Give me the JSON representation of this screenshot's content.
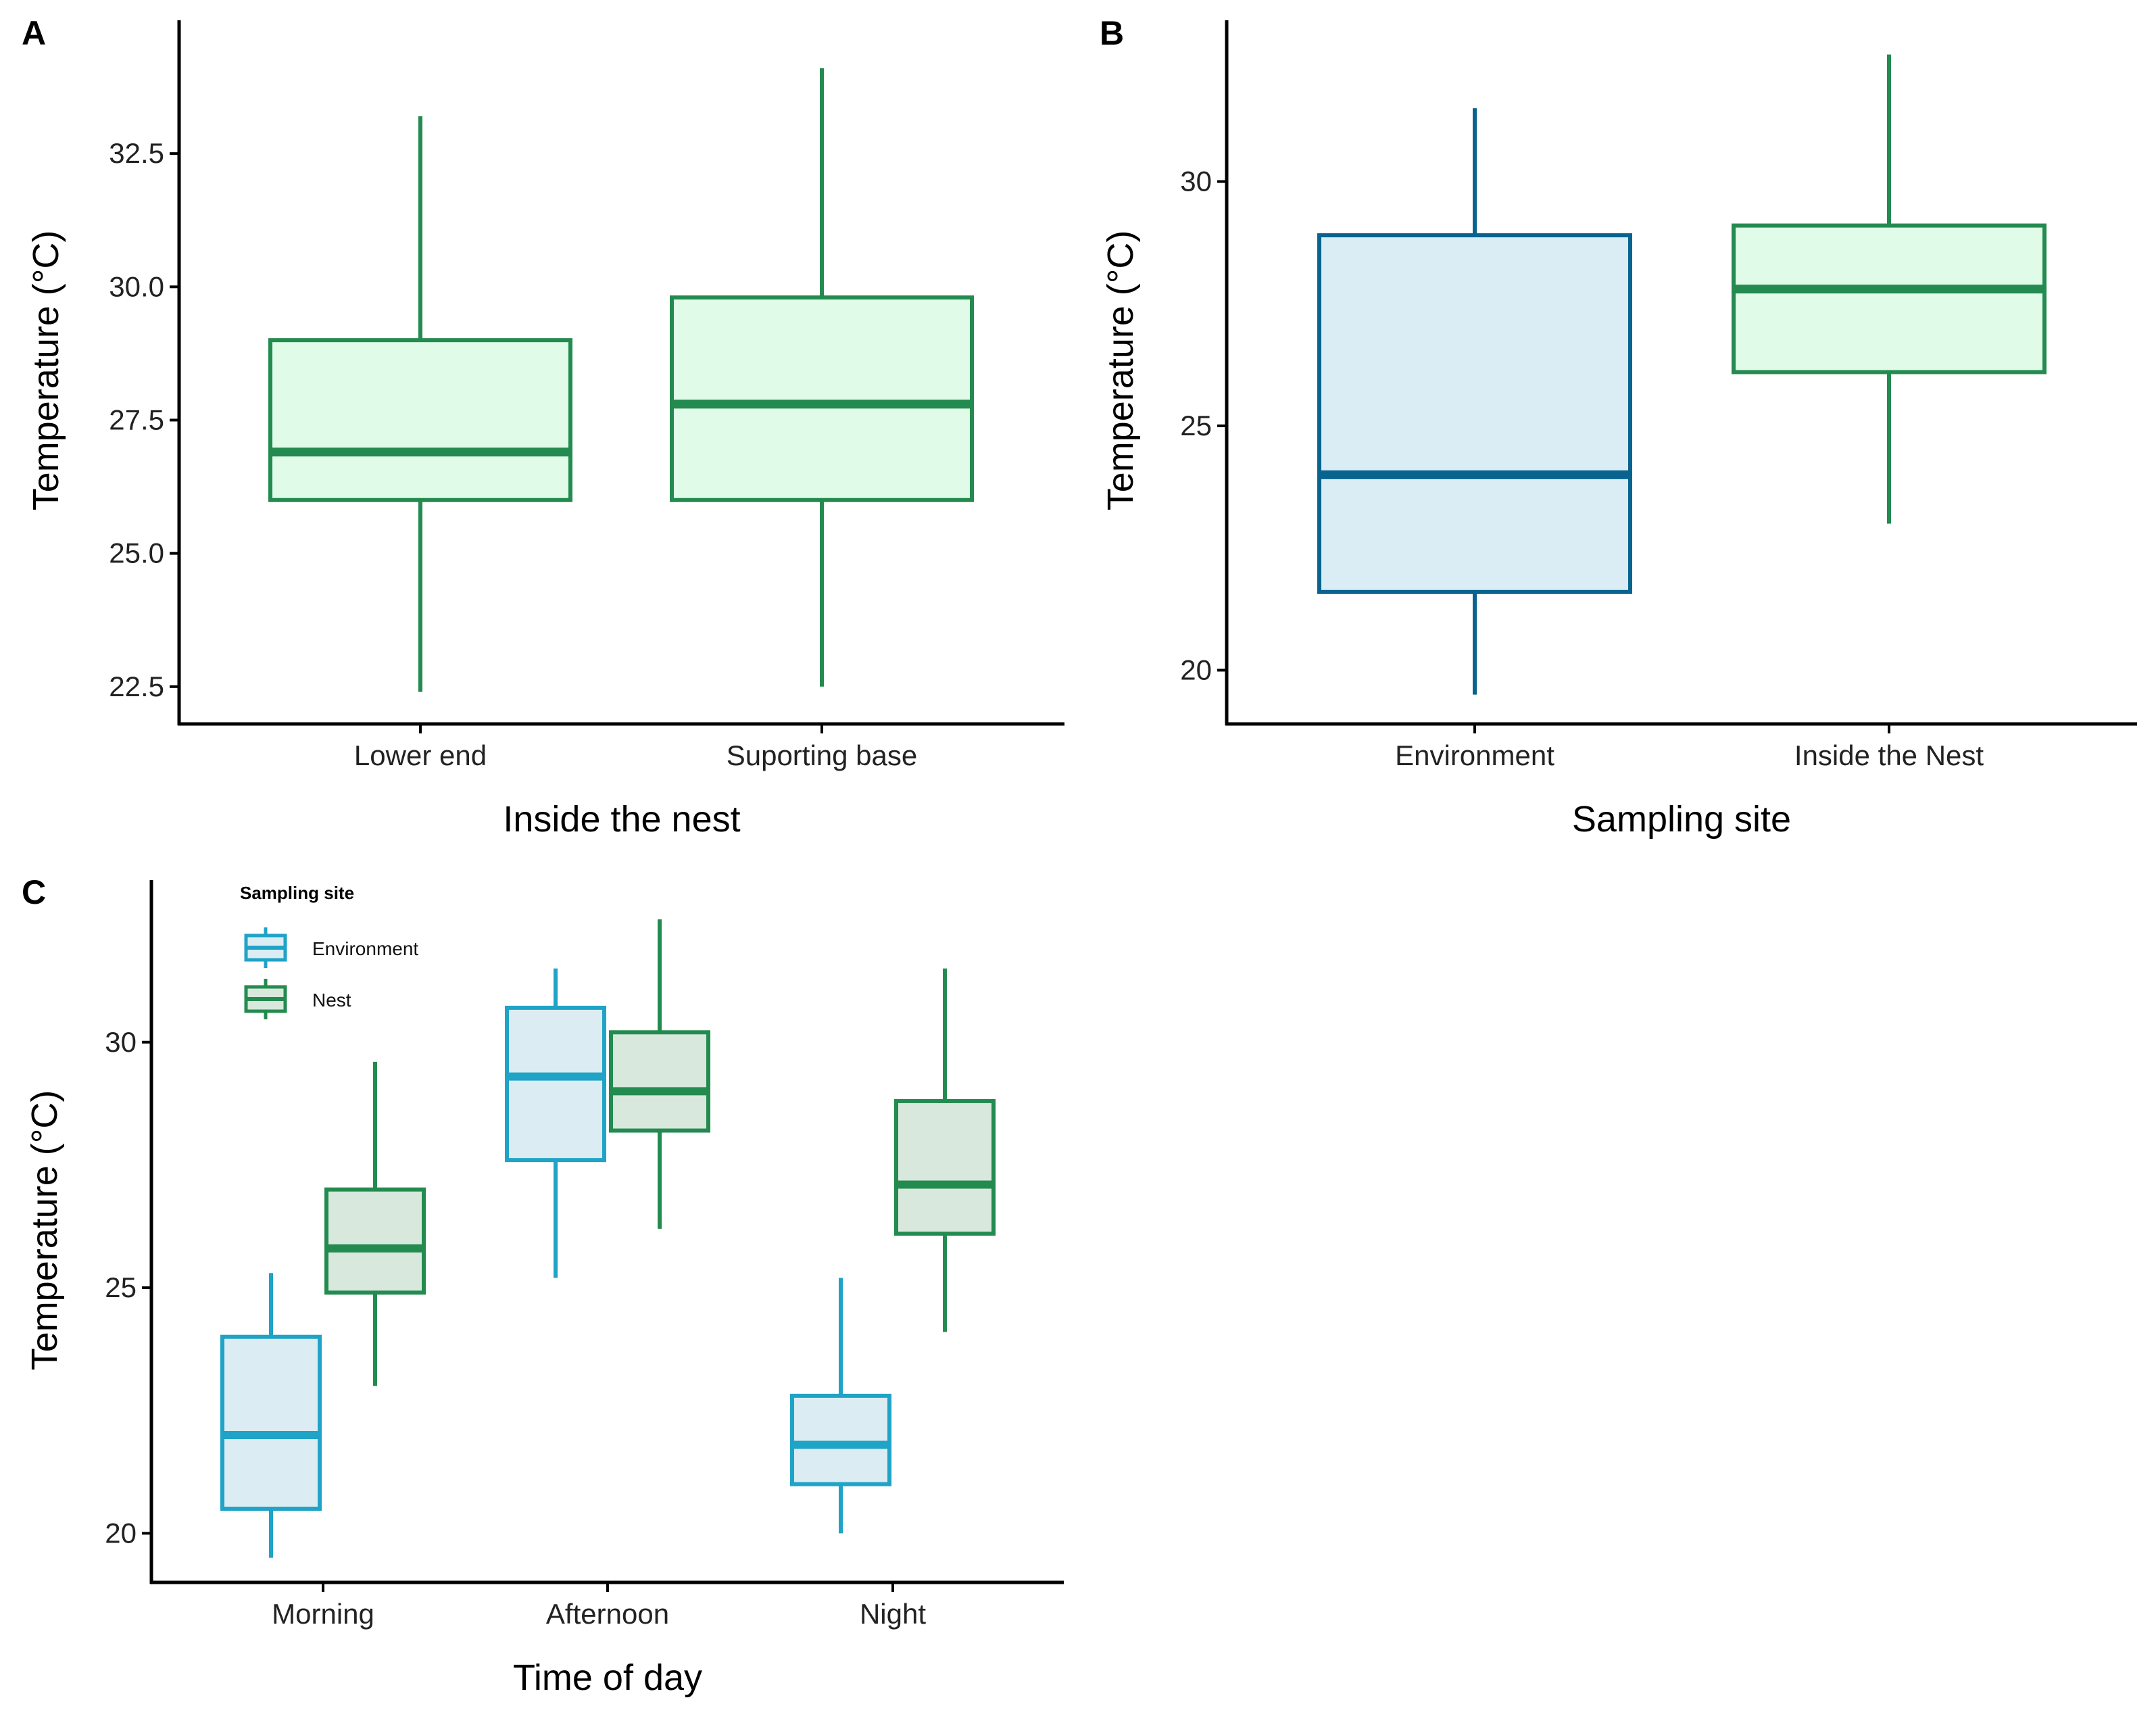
{
  "chart_data": [
    {
      "panel": "A",
      "type": "box",
      "title": "",
      "xlabel": "Inside the nest",
      "ylabel": "Temperature (°C)",
      "categories": [
        "Lower end",
        "Suporting base"
      ],
      "ylim": [
        21.8,
        35.0
      ],
      "yticks": [
        22.5,
        25.0,
        27.5,
        30.0,
        32.5
      ],
      "ytick_labels": [
        "22.5",
        "25.0",
        "27.5",
        "30.0",
        "32.5"
      ],
      "boxes": [
        {
          "category": "Lower end",
          "min": 22.4,
          "q1": 26.0,
          "median": 26.9,
          "q3": 29.0,
          "max": 33.2
        },
        {
          "category": "Suporting base",
          "min": 22.5,
          "q1": 26.0,
          "median": 27.8,
          "q3": 29.8,
          "max": 34.1
        }
      ],
      "colors": {
        "stroke": "#238b4f",
        "fill": "#e0fbe8"
      }
    },
    {
      "panel": "B",
      "type": "box",
      "title": "",
      "xlabel": "Sampling site",
      "ylabel": "Temperature (°C)",
      "categories": [
        "Environment",
        "Inside the Nest"
      ],
      "ylim": [
        18.9,
        33.3
      ],
      "yticks": [
        20,
        25,
        30
      ],
      "ytick_labels": [
        "20",
        "25",
        "30"
      ],
      "boxes": [
        {
          "category": "Environment",
          "min": 19.5,
          "q1": 21.6,
          "median": 24.0,
          "q3": 28.9,
          "max": 31.5,
          "stroke": "#08638f",
          "fill": "#dbedf4"
        },
        {
          "category": "Inside the Nest",
          "min": 23.0,
          "q1": 26.1,
          "median": 27.8,
          "q3": 29.1,
          "max": 32.6,
          "stroke": "#238b4f",
          "fill": "#e0fbe8"
        }
      ]
    },
    {
      "panel": "C",
      "type": "box",
      "title": "",
      "xlabel": "Time of day",
      "ylabel": "Temperature (°C)",
      "categories": [
        "Morning",
        "Afternoon",
        "Night"
      ],
      "ylim": [
        19.0,
        33.3
      ],
      "yticks": [
        20,
        25,
        30
      ],
      "ytick_labels": [
        "20",
        "25",
        "30"
      ],
      "legend": {
        "title": "Sampling site",
        "position": "top-left",
        "entries": [
          "Environment",
          "Nest"
        ]
      },
      "series": [
        {
          "name": "Environment",
          "stroke": "#1fa3c6",
          "fill": "#dbecf3",
          "boxes": [
            {
              "category": "Morning",
              "min": 19.5,
              "q1": 20.5,
              "median": 22.0,
              "q3": 24.0,
              "max": 25.3
            },
            {
              "category": "Afternoon",
              "min": 25.2,
              "q1": 27.6,
              "median": 29.3,
              "q3": 30.7,
              "max": 31.5
            },
            {
              "category": "Night",
              "min": 20.0,
              "q1": 21.0,
              "median": 21.8,
              "q3": 22.8,
              "max": 25.2
            }
          ]
        },
        {
          "name": "Nest",
          "stroke": "#238b4f",
          "fill": "#d8e8dd",
          "boxes": [
            {
              "category": "Morning",
              "min": 23.0,
              "q1": 24.9,
              "median": 25.8,
              "q3": 27.0,
              "max": 29.6
            },
            {
              "category": "Afternoon",
              "min": 26.2,
              "q1": 28.2,
              "median": 29.0,
              "q3": 30.2,
              "max": 32.5
            },
            {
              "category": "Night",
              "min": 24.1,
              "q1": 26.1,
              "median": 27.1,
              "q3": 28.8,
              "max": 31.5
            }
          ]
        }
      ]
    }
  ]
}
